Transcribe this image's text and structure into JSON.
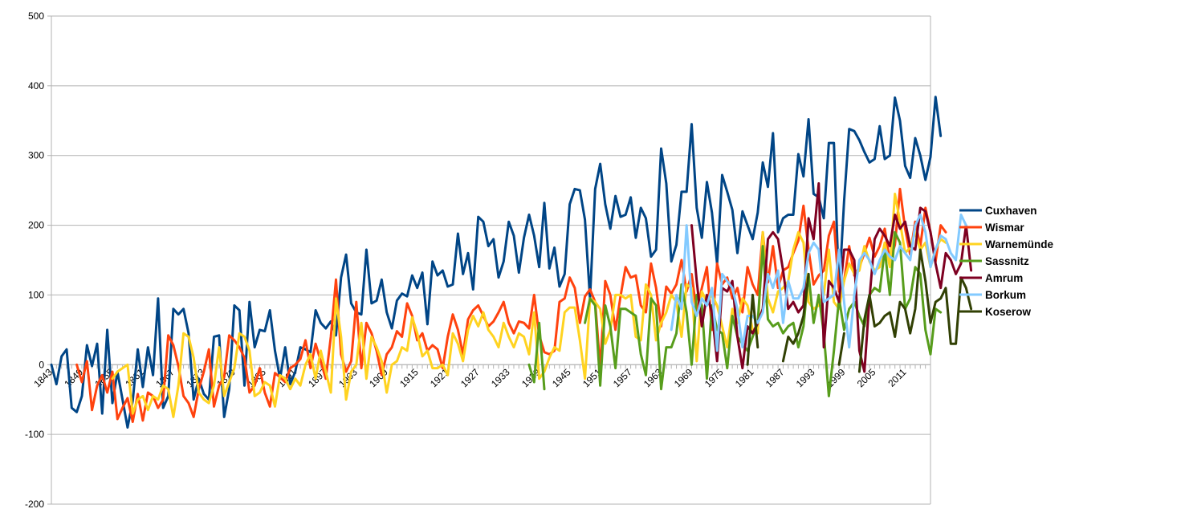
{
  "chart_data": {
    "type": "line",
    "title": "",
    "xlabel": "",
    "ylabel": "",
    "xlim": [
      1843,
      2016
    ],
    "ylim": [
      -200,
      500
    ],
    "yticks": [
      -200,
      -100,
      0,
      100,
      200,
      300,
      400,
      500
    ],
    "xticks": [
      1843,
      1849,
      1855,
      1861,
      1867,
      1873,
      1879,
      1885,
      1891,
      1897,
      1903,
      1909,
      1915,
      1921,
      1927,
      1933,
      1939,
      1945,
      1951,
      1957,
      1963,
      1969,
      1975,
      1981,
      1987,
      1993,
      1999,
      2005,
      2011
    ],
    "grid": "horizontal",
    "legend_position": "right",
    "series": [
      {
        "name": "Cuxhaven",
        "color": "#004586",
        "start": 1843,
        "values": [
          0,
          -28,
          12,
          22,
          -62,
          -68,
          -45,
          28,
          -2,
          30,
          -70,
          50,
          -55,
          -10,
          -50,
          -90,
          -52,
          22,
          -32,
          25,
          -15,
          95,
          -62,
          -45,
          80,
          72,
          80,
          45,
          -50,
          -20,
          -42,
          -50,
          40,
          42,
          -75,
          -35,
          85,
          78,
          -30,
          90,
          25,
          50,
          48,
          78,
          20,
          -20,
          25,
          -28,
          -10,
          25,
          22,
          18,
          78,
          60,
          52,
          62,
          42,
          125,
          158,
          88,
          75,
          72,
          165,
          88,
          92,
          122,
          75,
          52,
          92,
          102,
          98,
          128,
          110,
          132,
          58,
          148,
          128,
          135,
          112,
          115,
          188,
          130,
          160,
          108,
          212,
          205,
          170,
          180,
          125,
          148,
          205,
          185,
          132,
          182,
          215,
          185,
          140,
          232,
          138,
          168,
          112,
          130,
          230,
          252,
          250,
          208,
          95,
          252,
          288,
          230,
          195,
          242,
          212,
          215,
          240,
          182,
          225,
          210,
          155,
          165,
          310,
          260,
          148,
          172,
          248,
          248,
          345,
          225,
          182,
          262,
          218,
          145,
          272,
          248,
          222,
          160,
          220,
          200,
          180,
          218,
          290,
          255,
          332,
          190,
          210,
          215,
          215,
          302,
          270,
          352,
          245,
          240,
          210,
          318,
          318,
          105,
          235,
          338,
          335,
          322,
          305,
          290,
          295,
          342,
          295,
          300,
          383,
          350,
          285,
          268,
          325,
          300,
          265,
          298,
          384,
          328
        ]
      },
      {
        "name": "Wismar",
        "color": "#ff420e",
        "start": 1848,
        "values": [
          0,
          -25,
          5,
          -65,
          -30,
          -15,
          -40,
          -10,
          -78,
          -62,
          -48,
          -82,
          -42,
          -80,
          -40,
          -45,
          -62,
          -50,
          42,
          28,
          -2,
          -45,
          -55,
          -75,
          -35,
          -10,
          22,
          -60,
          -30,
          -18,
          42,
          35,
          25,
          10,
          -40,
          -30,
          -5,
          -40,
          -60,
          -12,
          -18,
          -25,
          -5,
          0,
          8,
          35,
          -5,
          30,
          5,
          -20,
          40,
          122,
          15,
          -10,
          5,
          90,
          -5,
          60,
          45,
          20,
          -15,
          15,
          25,
          48,
          40,
          88,
          70,
          35,
          45,
          20,
          28,
          22,
          -5,
          40,
          72,
          50,
          15,
          65,
          78,
          85,
          70,
          55,
          62,
          75,
          90,
          60,
          45,
          62,
          60,
          52,
          100,
          42,
          18,
          15,
          20,
          90,
          95,
          125,
          110,
          60,
          98,
          108,
          90,
          -5,
          120,
          100,
          50,
          98,
          140,
          125,
          128,
          85,
          75,
          145,
          110,
          55,
          112,
          102,
          115,
          150,
          105,
          130,
          75,
          110,
          140,
          50,
          145,
          115,
          125,
          95,
          110,
          75,
          140,
          115,
          100,
          190,
          118,
          170,
          110,
          135,
          140,
          160,
          178,
          228,
          165,
          115,
          128,
          135,
          185,
          205,
          105,
          120,
          170,
          128,
          140,
          160,
          182,
          155,
          170,
          195,
          148,
          172,
          252,
          195,
          158,
          205,
          170,
          225,
          190,
          148,
          200,
          190
        ]
      },
      {
        "name": "Warnemünde",
        "color": "#ffd320",
        "start": 1855,
        "values": [
          -20,
          -10,
          -5,
          0,
          -70,
          -50,
          -45,
          -65,
          -45,
          -50,
          -30,
          -35,
          -75,
          -30,
          45,
          40,
          10,
          -40,
          -50,
          -55,
          -30,
          25,
          -45,
          -25,
          -5,
          45,
          40,
          20,
          -45,
          -40,
          -25,
          -30,
          -60,
          -15,
          -20,
          -35,
          -20,
          -30,
          0,
          15,
          -20,
          20,
          -10,
          -40,
          95,
          40,
          -50,
          -10,
          0,
          60,
          -20,
          40,
          25,
          5,
          -40,
          0,
          5,
          25,
          20,
          68,
          45,
          12,
          20,
          -5,
          -5,
          0,
          -15,
          45,
          30,
          5,
          50,
          70,
          55,
          75,
          50,
          40,
          25,
          60,
          40,
          25,
          45,
          40,
          15,
          75,
          -20,
          -10,
          10,
          25,
          20,
          75,
          82,
          82,
          35,
          -20,
          95,
          90,
          80,
          30,
          50,
          100,
          100,
          95,
          100,
          40,
          35,
          115,
          100,
          35,
          60,
          75,
          100,
          90,
          40,
          115,
          110,
          5,
          105,
          90,
          100,
          85,
          55,
          25,
          80,
          60,
          95,
          85,
          50,
          45,
          190,
          95,
          75,
          105,
          110,
          120,
          165,
          190,
          175,
          90,
          80,
          85,
          100,
          165,
          90,
          80,
          120,
          145,
          130,
          135,
          170,
          148,
          135,
          140,
          175,
          140,
          245,
          205,
          160,
          168,
          190,
          165,
          175,
          140,
          165,
          180,
          175
        ]
      },
      {
        "name": "Sassnitz",
        "color": "#579d1c",
        "start": 1937,
        "values": [
          0,
          -25,
          60,
          -35,
          null,
          null,
          null,
          null,
          null,
          null,
          null,
          60,
          95,
          85,
          -30,
          85,
          55,
          -5,
          80,
          80,
          75,
          70,
          15,
          -15,
          95,
          85,
          -35,
          25,
          25,
          45,
          115,
          75,
          0,
          100,
          85,
          -20,
          85,
          50,
          45,
          -5,
          70,
          40,
          30,
          20,
          40,
          60,
          170,
          65,
          55,
          60,
          45,
          55,
          60,
          25,
          55,
          130,
          60,
          100,
          45,
          -45,
          20,
          95,
          50,
          80,
          90,
          70,
          55,
          100,
          110,
          105,
          165,
          100,
          190,
          175,
          80,
          95,
          140,
          130,
          50,
          15,
          80,
          75
        ]
      },
      {
        "name": "Amrum",
        "color": "#7e0021",
        "start": 1966,
        "values": [
          null,
          null,
          null,
          200,
          120,
          55,
          100,
          75,
          5,
          110,
          105,
          120,
          40,
          -5,
          55,
          45,
          60,
          80,
          180,
          190,
          180,
          135,
          80,
          90,
          75,
          85,
          210,
          180,
          260,
          25,
          120,
          110,
          90,
          165,
          165,
          150,
          20,
          -10,
          95,
          180,
          195,
          185,
          170,
          215,
          195,
          205,
          170,
          165,
          225,
          220,
          190,
          145,
          110,
          160,
          150,
          130,
          145,
          200,
          135
        ]
      },
      {
        "name": "Borkum",
        "color": "#83caff",
        "start": 1963,
        "values": [
          null,
          null,
          50,
          100,
          80,
          200,
          90,
          70,
          95,
          85,
          110,
          20,
          130,
          120,
          110,
          80,
          25,
          70,
          70,
          60,
          75,
          130,
          110,
          135,
          60,
          120,
          95,
          95,
          110,
          160,
          175,
          165,
          90,
          95,
          100,
          165,
          90,
          25,
          100,
          150,
          160,
          150,
          130,
          150,
          165,
          155,
          150,
          170,
          160,
          150,
          200,
          215,
          190,
          140,
          165,
          185,
          180,
          160,
          150,
          215,
          200
        ]
      },
      {
        "name": "Koserow",
        "color": "#314004",
        "start": 1980,
        "values": [
          0,
          100,
          25,
          null,
          null,
          null,
          null,
          5,
          40,
          30,
          45,
          70,
          130,
          null,
          null,
          null,
          null,
          null,
          0,
          45,
          null,
          null,
          -10,
          65,
          100,
          55,
          60,
          70,
          75,
          40,
          90,
          80,
          45,
          80,
          165,
          120,
          60,
          90,
          95,
          110,
          30,
          30,
          125,
          110,
          80
        ]
      }
    ]
  }
}
